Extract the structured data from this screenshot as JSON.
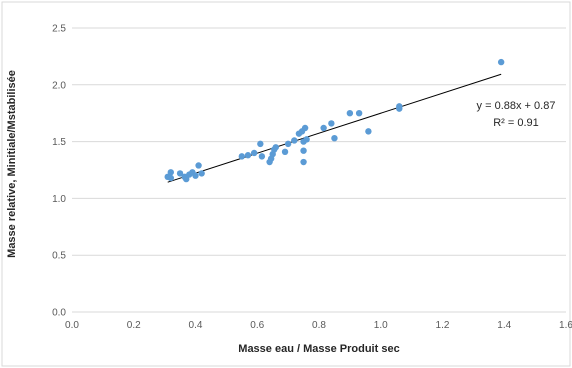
{
  "chart_data": {
    "type": "scatter",
    "title": "",
    "xlabel": "Masse eau / Masse Produit sec",
    "ylabel": "Masse relative, Minitiale/Mstabilisée",
    "xlim": [
      0,
      1.6
    ],
    "ylim": [
      0,
      2.5
    ],
    "x_ticks": [
      "0.0",
      "0.2",
      "0.4",
      "0.6",
      "0.8",
      "1.0",
      "1.2",
      "1.4",
      "1.6"
    ],
    "y_ticks": [
      "0.0",
      "0.5",
      "1.0",
      "1.5",
      "2.0",
      "2.5"
    ],
    "grid": "horizontal",
    "legend": "none",
    "colors": {
      "points": "#5b9bd5",
      "trendline": "#000000",
      "grid": "#d9d9d9",
      "border": "#d9d9d9"
    },
    "series": [
      {
        "points": [
          [
            0.31,
            1.19
          ],
          [
            0.32,
            1.23
          ],
          [
            0.32,
            1.18
          ],
          [
            0.35,
            1.22
          ],
          [
            0.365,
            1.19
          ],
          [
            0.37,
            1.17
          ],
          [
            0.38,
            1.21
          ],
          [
            0.39,
            1.23
          ],
          [
            0.4,
            1.2
          ],
          [
            0.41,
            1.29
          ],
          [
            0.42,
            1.22
          ],
          [
            0.55,
            1.37
          ],
          [
            0.57,
            1.38
          ],
          [
            0.59,
            1.4
          ],
          [
            0.61,
            1.48
          ],
          [
            0.615,
            1.37
          ],
          [
            0.64,
            1.32
          ],
          [
            0.645,
            1.35
          ],
          [
            0.65,
            1.39
          ],
          [
            0.655,
            1.43
          ],
          [
            0.66,
            1.45
          ],
          [
            0.69,
            1.41
          ],
          [
            0.7,
            1.48
          ],
          [
            0.72,
            1.51
          ],
          [
            0.735,
            1.57
          ],
          [
            0.745,
            1.59
          ],
          [
            0.75,
            1.42
          ],
          [
            0.75,
            1.5
          ],
          [
            0.75,
            1.32
          ],
          [
            0.755,
            1.62
          ],
          [
            0.76,
            1.52
          ],
          [
            0.815,
            1.62
          ],
          [
            0.84,
            1.66
          ],
          [
            0.85,
            1.53
          ],
          [
            0.9,
            1.75
          ],
          [
            0.93,
            1.75
          ],
          [
            0.96,
            1.59
          ],
          [
            1.06,
            1.81
          ],
          [
            1.06,
            1.79
          ],
          [
            1.39,
            2.2
          ]
        ]
      }
    ],
    "trendline": {
      "slope": 0.88,
      "intercept": 0.87,
      "x_range": [
        0.31,
        1.39
      ],
      "equation_label": "y = 0.88x + 0.87",
      "r2_label": "R² = 0.91"
    }
  }
}
